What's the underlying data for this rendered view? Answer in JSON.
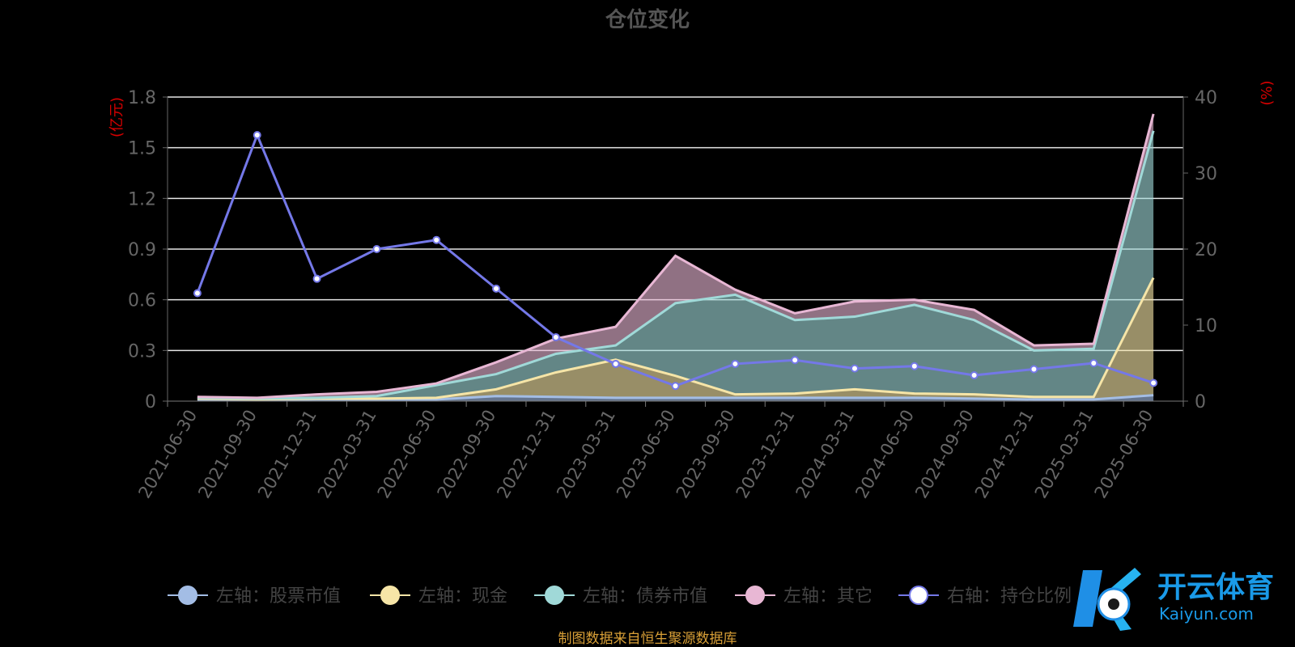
{
  "chart_data": {
    "type": "area",
    "title": "仓位变化",
    "left_axis_unit": "(亿元)",
    "right_axis_unit": "(%)",
    "left_ylim": [
      0,
      1.8
    ],
    "left_ticks": [
      "0",
      "0.3",
      "0.6",
      "0.9",
      "1.2",
      "1.5",
      "1.8"
    ],
    "right_ylim": [
      0,
      40
    ],
    "right_ticks": [
      "0",
      "10",
      "20",
      "30",
      "40"
    ],
    "grid": true,
    "legend_position": "bottom",
    "categories": [
      "2021-06-30",
      "2021-09-30",
      "2021-12-31",
      "2022-03-31",
      "2022-06-30",
      "2022-09-30",
      "2022-12-31",
      "2023-03-31",
      "2023-06-30",
      "2023-09-30",
      "2023-12-31",
      "2024-03-31",
      "2024-06-30",
      "2024-09-30",
      "2024-12-31",
      "2025-03-31",
      "2025-06-30"
    ],
    "series": [
      {
        "name": "左轴：股票市值",
        "axis": "left",
        "stacked": true,
        "color": "#a3bde5",
        "values": [
          0.005,
          0.005,
          0.01,
          0.01,
          0.01,
          0.03,
          0.025,
          0.02,
          0.02,
          0.02,
          0.02,
          0.02,
          0.02,
          0.015,
          0.01,
          0.01,
          0.035
        ]
      },
      {
        "name": "左轴：现金",
        "axis": "left",
        "stacked": true,
        "color": "#f6e5a7",
        "values": [
          0.01,
          0.005,
          0.005,
          0.005,
          0.01,
          0.04,
          0.145,
          0.225,
          0.13,
          0.02,
          0.025,
          0.05,
          0.025,
          0.025,
          0.015,
          0.015,
          0.695
        ]
      },
      {
        "name": "左轴：债券市值",
        "axis": "left",
        "stacked": true,
        "color": "#a0d9d8",
        "values": [
          0.005,
          0.005,
          0.005,
          0.015,
          0.075,
          0.09,
          0.11,
          0.085,
          0.43,
          0.59,
          0.435,
          0.43,
          0.525,
          0.44,
          0.275,
          0.285,
          0.87
        ]
      },
      {
        "name": "左轴：其它",
        "axis": "left",
        "stacked": true,
        "color": "#e8b7d4",
        "values": [
          0.005,
          0.005,
          0.02,
          0.025,
          0.01,
          0.07,
          0.09,
          0.11,
          0.28,
          0.03,
          0.04,
          0.09,
          0.03,
          0.06,
          0.03,
          0.03,
          0.1
        ]
      },
      {
        "name": "右轴：持仓比例",
        "axis": "right",
        "stacked": false,
        "color": "#7478e8",
        "values": [
          14.2,
          35.0,
          16.1,
          20.0,
          21.2,
          14.8,
          8.4,
          4.9,
          2.0,
          4.9,
          5.4,
          4.3,
          4.6,
          3.4,
          4.2,
          5.0,
          2.4
        ]
      }
    ],
    "source": "制图数据来自恒生聚源数据库"
  }
}
